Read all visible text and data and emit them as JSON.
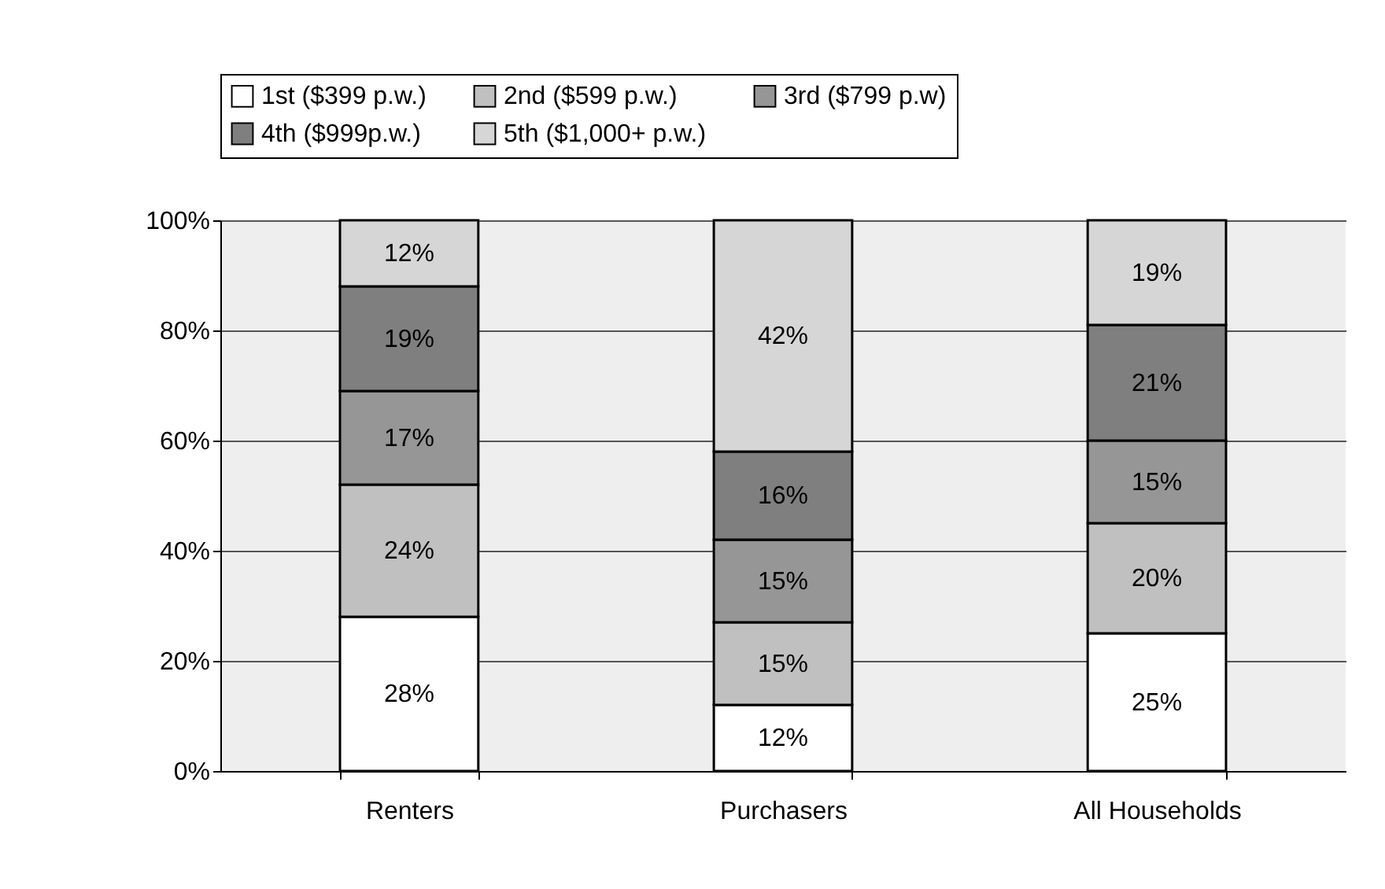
{
  "chart_data": {
    "type": "bar",
    "stacked": true,
    "categories": [
      "Renters",
      "Purchasers",
      "All Households"
    ],
    "series": [
      {
        "name": "1st ($399 p.w.)",
        "color": "#ffffff",
        "values": [
          28,
          12,
          25
        ],
        "value_labels": [
          "28%",
          "12%",
          "25%"
        ]
      },
      {
        "name": "2nd ($599 p.w.)",
        "color": "#c0c0c0",
        "values": [
          24,
          15,
          20
        ],
        "value_labels": [
          "24%",
          "15%",
          "20%"
        ]
      },
      {
        "name": "3rd ($799 p.w)",
        "color": "#969696",
        "values": [
          17,
          15,
          15
        ],
        "value_labels": [
          "17%",
          "15%",
          "15%"
        ]
      },
      {
        "name": "4th ($999p.w.)",
        "color": "#7f7f7f",
        "values": [
          19,
          16,
          21
        ],
        "value_labels": [
          "19%",
          "16%",
          "21%"
        ]
      },
      {
        "name": "5th ($1,000+ p.w.)",
        "color": "#d6d6d6",
        "values": [
          12,
          42,
          19
        ],
        "value_labels": [
          "12%",
          "42%",
          "19%"
        ]
      }
    ],
    "ylim": [
      0,
      100
    ],
    "yticks": [
      {
        "value": 0,
        "label": "0%"
      },
      {
        "value": 20,
        "label": "20%"
      },
      {
        "value": 40,
        "label": "40%"
      },
      {
        "value": 60,
        "label": "60%"
      },
      {
        "value": 80,
        "label": "80%"
      },
      {
        "value": 100,
        "label": "100%"
      }
    ],
    "grid": "y",
    "legend": "top"
  }
}
